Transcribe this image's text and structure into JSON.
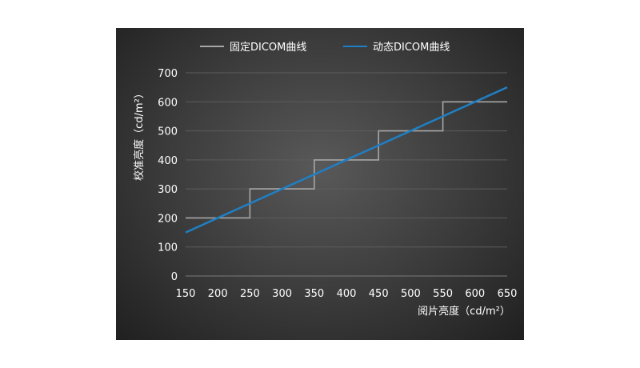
{
  "chart_data": {
    "type": "line",
    "xlabel": "阅片亮度（cd/m²）",
    "ylabel": "校准亮度（cd/m²）",
    "xlim": [
      150,
      650
    ],
    "ylim": [
      0,
      700
    ],
    "x_ticks": [
      150,
      200,
      250,
      300,
      350,
      400,
      450,
      500,
      550,
      600,
      650
    ],
    "y_ticks": [
      0,
      100,
      200,
      300,
      400,
      500,
      600,
      700
    ],
    "grid": true,
    "legend_position": "top-center",
    "series": [
      {
        "name": "固定DICOM曲线",
        "color": "#a6a6a6",
        "step": true,
        "x": [
          150,
          250,
          250,
          350,
          350,
          450,
          450,
          550,
          550,
          650
        ],
        "y": [
          200,
          200,
          300,
          300,
          400,
          400,
          500,
          500,
          600,
          600
        ]
      },
      {
        "name": "动态DICOM曲线",
        "color": "#1f7fc4",
        "x": [
          150,
          650
        ],
        "y": [
          150,
          650
        ]
      }
    ]
  }
}
